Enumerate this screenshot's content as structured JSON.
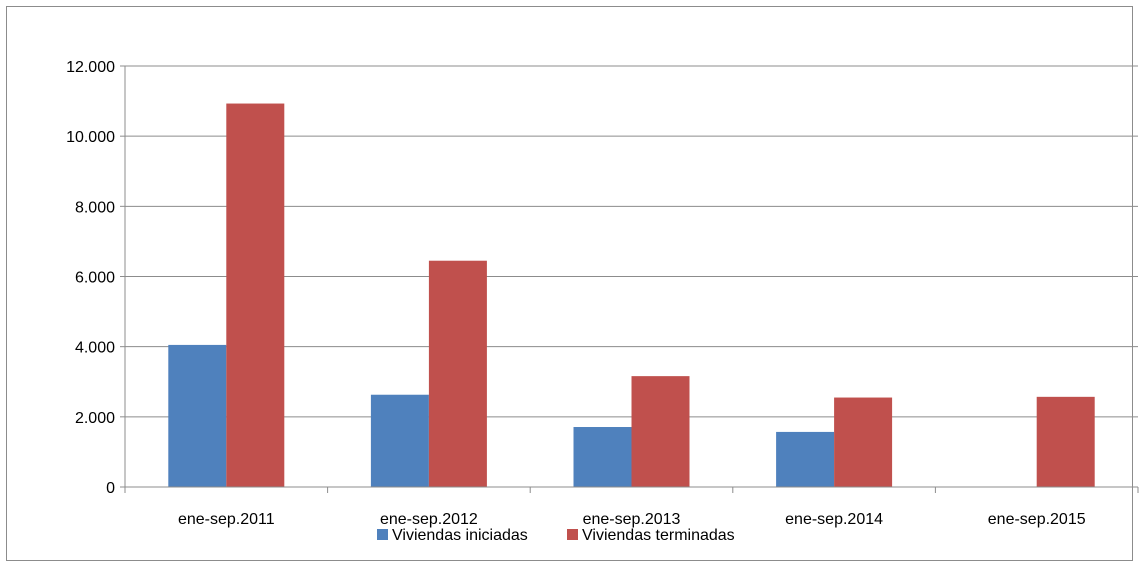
{
  "chart_data": {
    "type": "bar",
    "categories": [
      "ene-sep.2011",
      "ene-sep.2012",
      "ene-sep.2013",
      "ene-sep.2014",
      "ene-sep.2015"
    ],
    "series": [
      {
        "name": "Viviendas iniciadas",
        "color": "#4f81bd",
        "values": [
          4050,
          2630,
          1710,
          1570,
          0
        ]
      },
      {
        "name": "Viviendas terminadas",
        "color": "#c0504d",
        "values": [
          10930,
          6450,
          3160,
          2550,
          2570
        ]
      }
    ],
    "ylim": [
      0,
      12000
    ],
    "yticks": [
      0,
      2000,
      4000,
      6000,
      8000,
      10000,
      12000
    ],
    "ytick_labels": [
      "0",
      "2.000",
      "4.000",
      "6.000",
      "8.000",
      "10.000",
      "12.000"
    ],
    "title": "",
    "xlabel": "",
    "ylabel": "",
    "grid": true,
    "legend": "bottom"
  }
}
